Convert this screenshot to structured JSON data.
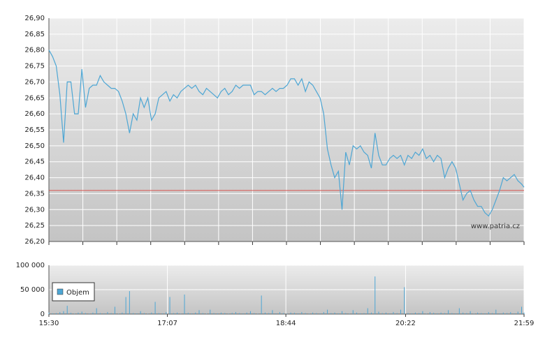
{
  "chart_data": {
    "type": "line",
    "x": [
      "15:30",
      "15:33",
      "15:36",
      "15:39",
      "15:42",
      "15:45",
      "15:48",
      "15:51",
      "15:54",
      "15:57",
      "16:00",
      "16:03",
      "16:06",
      "16:09",
      "16:12",
      "16:15",
      "16:18",
      "16:21",
      "16:24",
      "16:27",
      "16:30",
      "16:33",
      "16:36",
      "16:39",
      "16:42",
      "16:45",
      "16:48",
      "16:51",
      "16:54",
      "16:57",
      "17:00",
      "17:03",
      "17:06",
      "17:09",
      "17:12",
      "17:15",
      "17:18",
      "17:21",
      "17:24",
      "17:27",
      "17:30",
      "17:33",
      "17:36",
      "17:39",
      "17:42",
      "17:45",
      "17:48",
      "17:51",
      "17:54",
      "17:57",
      "18:00",
      "18:03",
      "18:06",
      "18:09",
      "18:12",
      "18:15",
      "18:18",
      "18:21",
      "18:24",
      "18:27",
      "18:30",
      "18:33",
      "18:36",
      "18:39",
      "18:42",
      "18:45",
      "18:48",
      "18:51",
      "18:54",
      "18:57",
      "19:00",
      "19:03",
      "19:06",
      "19:09",
      "19:12",
      "19:15",
      "19:18",
      "19:21",
      "19:24",
      "19:27",
      "19:30",
      "19:33",
      "19:36",
      "19:39",
      "19:42",
      "19:45",
      "19:48",
      "19:51",
      "19:54",
      "19:57",
      "20:00",
      "20:03",
      "20:06",
      "20:09",
      "20:12",
      "20:15",
      "20:18",
      "20:21",
      "20:24",
      "20:27",
      "20:30",
      "20:33",
      "20:36",
      "20:39",
      "20:42",
      "20:45",
      "20:48",
      "20:51",
      "20:54",
      "20:57",
      "21:00",
      "21:03",
      "21:06",
      "21:09",
      "21:12",
      "21:15",
      "21:18",
      "21:21",
      "21:24",
      "21:27",
      "21:30",
      "21:33",
      "21:36",
      "21:39",
      "21:42",
      "21:45",
      "21:48",
      "21:51",
      "21:54",
      "21:57",
      "21:59"
    ],
    "xlim": [
      "15:30",
      "21:59"
    ],
    "xticks": [
      "15:30",
      "17:07",
      "18:44",
      "20:22",
      "21:59"
    ],
    "watermark": "www.patria.cz",
    "price": {
      "color": "#4da6d4",
      "values": [
        26.8,
        26.78,
        26.75,
        26.66,
        26.51,
        26.7,
        26.7,
        26.6,
        26.6,
        26.74,
        26.62,
        26.68,
        26.69,
        26.69,
        26.72,
        26.7,
        26.69,
        26.68,
        26.68,
        26.67,
        26.64,
        26.6,
        26.54,
        26.6,
        26.58,
        26.65,
        26.62,
        26.65,
        26.58,
        26.6,
        26.65,
        26.66,
        26.67,
        26.64,
        26.66,
        26.65,
        26.67,
        26.68,
        26.69,
        26.68,
        26.69,
        26.67,
        26.66,
        26.68,
        26.67,
        26.66,
        26.65,
        26.67,
        26.68,
        26.66,
        26.67,
        26.69,
        26.68,
        26.69,
        26.69,
        26.69,
        26.66,
        26.67,
        26.67,
        26.66,
        26.67,
        26.68,
        26.67,
        26.68,
        26.68,
        26.69,
        26.71,
        26.71,
        26.69,
        26.71,
        26.67,
        26.7,
        26.69,
        26.67,
        26.65,
        26.6,
        26.49,
        26.44,
        26.4,
        26.42,
        26.3,
        26.48,
        26.44,
        26.5,
        26.49,
        26.5,
        26.48,
        26.47,
        26.43,
        26.54,
        26.47,
        26.44,
        26.44,
        26.46,
        26.47,
        26.46,
        26.47,
        26.44,
        26.47,
        26.46,
        26.48,
        26.47,
        26.49,
        26.46,
        26.47,
        26.45,
        26.47,
        26.46,
        26.4,
        26.43,
        26.45,
        26.43,
        26.38,
        26.33,
        26.35,
        26.36,
        26.33,
        26.31,
        26.31,
        26.29,
        26.28,
        26.3,
        26.33,
        26.36,
        26.4,
        26.39,
        26.4,
        26.41,
        26.39,
        26.38,
        26.37
      ],
      "reference_line": 26.36,
      "reference_color": "#d9534f",
      "ylim": [
        26.2,
        26.9
      ],
      "yticks": [
        {
          "value": 26.2,
          "label": "26,20"
        },
        {
          "value": 26.25,
          "label": "26,25"
        },
        {
          "value": 26.3,
          "label": "26,30"
        },
        {
          "value": 26.35,
          "label": "26,35"
        },
        {
          "value": 26.4,
          "label": "26,40"
        },
        {
          "value": 26.45,
          "label": "26,45"
        },
        {
          "value": 26.5,
          "label": "26,50"
        },
        {
          "value": 26.55,
          "label": "26,55"
        },
        {
          "value": 26.6,
          "label": "26,60"
        },
        {
          "value": 26.65,
          "label": "26,65"
        },
        {
          "value": 26.7,
          "label": "26,70"
        },
        {
          "value": 26.75,
          "label": "26,75"
        },
        {
          "value": 26.8,
          "label": "26,80"
        },
        {
          "value": 26.85,
          "label": "26,85"
        },
        {
          "value": 26.9,
          "label": "26,90"
        }
      ]
    },
    "volume": {
      "name": "Objem",
      "color": "#4da6d4",
      "values": [
        3000,
        1500,
        2000,
        4000,
        6000,
        17000,
        2500,
        1000,
        3000,
        5000,
        2000,
        1000,
        3000,
        12000,
        2000,
        1500,
        4000,
        2000,
        15000,
        1000,
        3000,
        35000,
        47000,
        2000,
        1500,
        6000,
        2000,
        1000,
        3000,
        25000,
        2000,
        1500,
        4000,
        35000,
        2000,
        3000,
        1000,
        40000,
        2500,
        1500,
        3000,
        8000,
        2000,
        1000,
        9000,
        2000,
        1500,
        3000,
        2000,
        1000,
        2500,
        4000,
        2000,
        1500,
        3000,
        6000,
        2000,
        1000,
        38000,
        3000,
        2000,
        8000,
        1500,
        4000,
        2000,
        1000,
        3000,
        2500,
        1500,
        4000,
        2000,
        1000,
        3000,
        2000,
        1500,
        4000,
        9000,
        2000,
        3000,
        1500,
        6000,
        2000,
        1000,
        8000,
        3000,
        1500,
        2000,
        12000,
        3000,
        77000,
        5000,
        2000,
        3000,
        1500,
        4000,
        2000,
        9000,
        55000,
        2000,
        1500,
        3000,
        2000,
        6000,
        1000,
        4000,
        2500,
        1500,
        3000,
        2000,
        8000,
        2000,
        1500,
        12000,
        3000,
        2000,
        6000,
        1000,
        3000,
        2000,
        1500,
        4000,
        2000,
        9000,
        1500,
        3000,
        2000,
        4000,
        1500,
        5000,
        15000,
        3000
      ],
      "ylim": [
        0,
        100000
      ],
      "yticks": [
        {
          "value": 0,
          "label": "0"
        },
        {
          "value": 50000,
          "label": "50 000"
        },
        {
          "value": 100000,
          "label": "100 000"
        }
      ]
    }
  }
}
